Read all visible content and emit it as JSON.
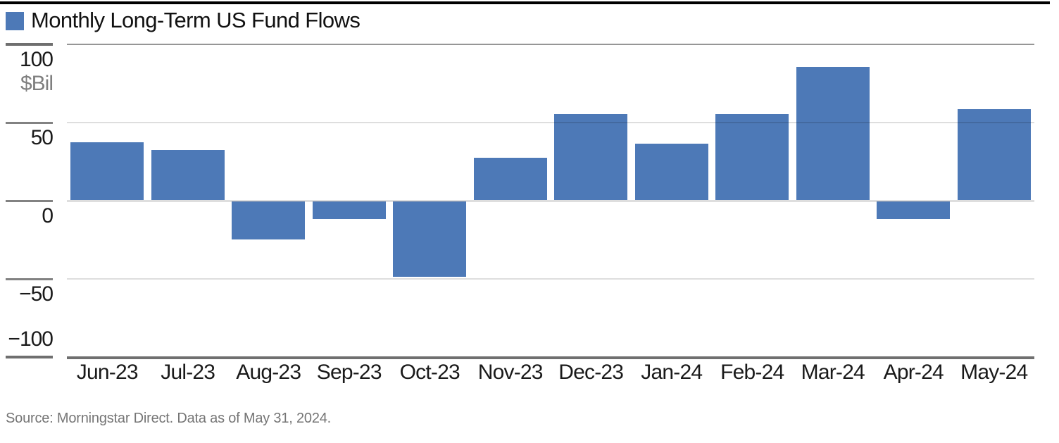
{
  "header": {
    "title": "Monthly Long-Term US Fund Flows"
  },
  "footer": {
    "source": "Source: Morningstar Direct. Data as of May 31, 2024."
  },
  "chart_data": {
    "type": "bar",
    "title": "Monthly Long-Term US Fund Flows",
    "unit_label": "$Bil",
    "categories": [
      "Jun-23",
      "Jul-23",
      "Aug-23",
      "Sep-23",
      "Oct-23",
      "Nov-23",
      "Dec-23",
      "Jan-24",
      "Feb-24",
      "Mar-24",
      "Apr-24",
      "May-24"
    ],
    "values": [
      37,
      32,
      -25,
      -12,
      -49,
      27,
      55,
      36,
      55,
      85,
      -12,
      58
    ],
    "ylabel": "$Bil",
    "ylim": [
      -100,
      100
    ],
    "yticks": [
      100,
      50,
      0,
      -50,
      -100
    ],
    "grid": true,
    "legend_position": "top-left",
    "colors": {
      "bar": "#4d79b7",
      "axis_dark": "#6f6f6f",
      "grid_major": "#969696",
      "grid_light": "rgba(0,0,0,0.13)",
      "tick_stub": "#828282"
    }
  }
}
